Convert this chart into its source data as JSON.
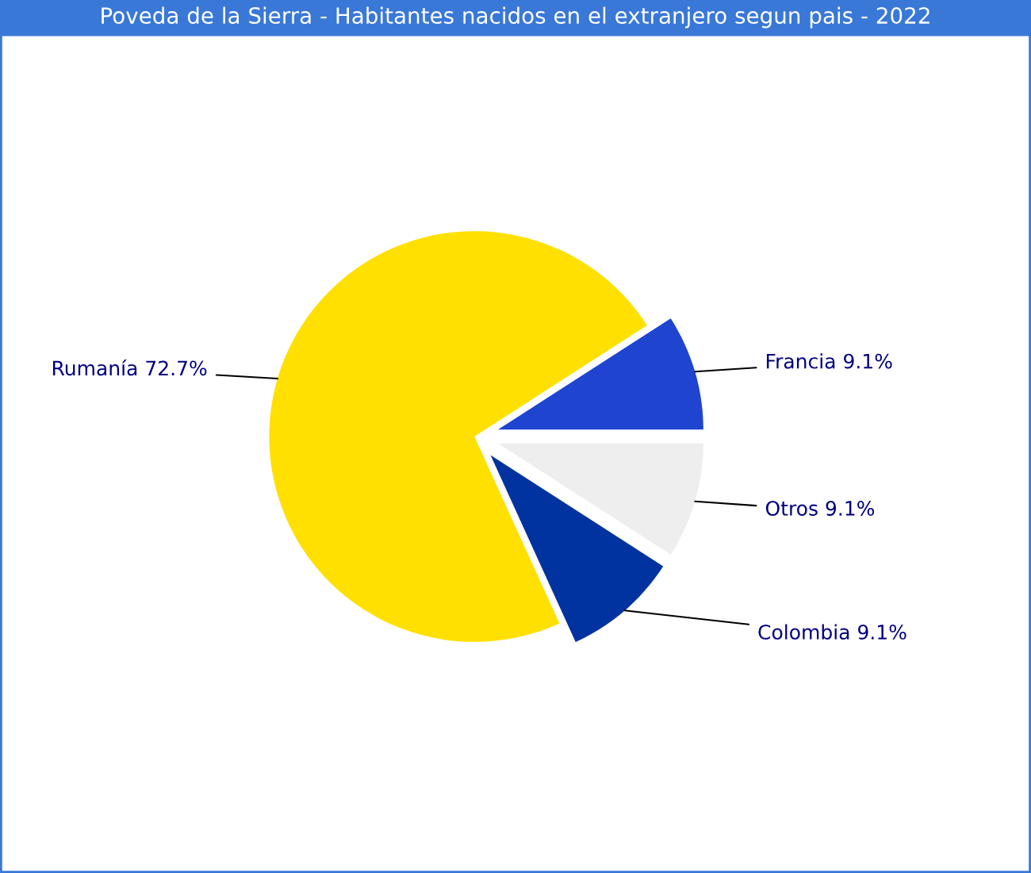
{
  "chart_data": {
    "type": "pie",
    "title": "Poveda de la Sierra - Habitantes nacidos en el extranjero segun pais - 2022",
    "categories": [
      "Otros",
      "Colombia",
      "Rumanía",
      "Francia"
    ],
    "values": [
      9.1,
      9.1,
      72.7,
      9.1
    ],
    "value_labels": [
      "9.1%",
      "9.1%",
      "72.7%",
      "9.1%"
    ],
    "colors": [
      "#eeeeee",
      "#0033a0",
      "#ffe000",
      "#1f44d0"
    ]
  }
}
